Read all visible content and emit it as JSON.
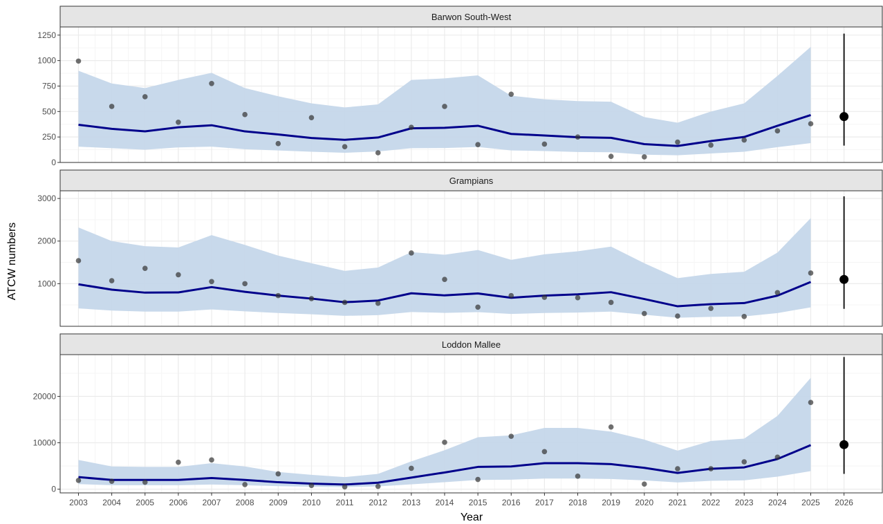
{
  "chart_data": {
    "type": "line",
    "xlabel": "Year",
    "ylabel": "ATCW numbers",
    "x": [
      2003,
      2004,
      2005,
      2006,
      2007,
      2008,
      2009,
      2010,
      2011,
      2012,
      2013,
      2014,
      2015,
      2016,
      2017,
      2018,
      2019,
      2020,
      2021,
      2022,
      2023,
      2024,
      2025
    ],
    "x_ticks": [
      "2003",
      "2004",
      "2005",
      "2006",
      "2007",
      "2008",
      "2009",
      "2010",
      "2011",
      "2012",
      "2013",
      "2014",
      "2015",
      "2016",
      "2017",
      "2018",
      "2019",
      "2020",
      "2021",
      "2022",
      "2023",
      "2024",
      "2025",
      "2026"
    ],
    "xlim": [
      2002.45,
      2027.15
    ],
    "grid": true,
    "colors": {
      "line": "#00008b",
      "ribbon": "#c5d7ea",
      "point": "#333333",
      "forecast": "#000000",
      "strip_bg": "#e5e5e5",
      "grid_major": "#ebebeb",
      "grid_minor": "#f5f5f5"
    },
    "panels": [
      {
        "title": "Barwon South-West",
        "ylim": [
          0,
          1330
        ],
        "yticks": [
          0,
          250,
          500,
          750,
          1000,
          1250
        ],
        "ytick_labels": [
          "0",
          "250",
          "500",
          "750",
          "1000",
          "1250"
        ],
        "fit": [
          370,
          330,
          305,
          345,
          365,
          305,
          275,
          240,
          222,
          245,
          335,
          340,
          360,
          280,
          265,
          248,
          242,
          180,
          162,
          210,
          250,
          360,
          465
        ],
        "lower": [
          155,
          140,
          125,
          148,
          155,
          130,
          118,
          105,
          95,
          108,
          140,
          142,
          152,
          118,
          112,
          103,
          100,
          76,
          70,
          88,
          105,
          150,
          190
        ],
        "upper": [
          900,
          775,
          730,
          810,
          880,
          730,
          650,
          580,
          540,
          570,
          810,
          825,
          855,
          655,
          620,
          602,
          596,
          445,
          390,
          500,
          580,
          850,
          1135
        ],
        "observed": [
          995,
          550,
          645,
          395,
          775,
          470,
          185,
          440,
          155,
          95,
          345,
          550,
          175,
          670,
          180,
          250,
          60,
          55,
          200,
          170,
          220,
          310,
          380
        ],
        "forecast": {
          "x": 2026,
          "y": 450,
          "lower": 165,
          "upper": 1265
        }
      },
      {
        "title": "Grampians",
        "ylim": [
          0,
          3180
        ],
        "yticks": [
          1000,
          2000,
          3000
        ],
        "ytick_labels": [
          "1000",
          "2000",
          "3000"
        ],
        "fit": [
          985,
          860,
          790,
          795,
          920,
          810,
          720,
          650,
          565,
          605,
          775,
          725,
          770,
          670,
          720,
          750,
          800,
          640,
          470,
          520,
          545,
          720,
          1040
        ],
        "lower": [
          420,
          370,
          345,
          345,
          395,
          350,
          312,
          282,
          245,
          262,
          335,
          315,
          332,
          290,
          312,
          322,
          345,
          272,
          200,
          222,
          232,
          310,
          445
        ],
        "upper": [
          2320,
          2000,
          1880,
          1850,
          2140,
          1910,
          1660,
          1480,
          1300,
          1380,
          1740,
          1680,
          1790,
          1560,
          1690,
          1760,
          1870,
          1480,
          1130,
          1230,
          1280,
          1730,
          2540
        ],
        "observed": [
          1540,
          1070,
          1360,
          1210,
          1050,
          1000,
          720,
          650,
          560,
          540,
          1720,
          1100,
          450,
          720,
          680,
          670,
          560,
          300,
          240,
          420,
          230,
          790,
          1250
        ],
        "forecast": {
          "x": 2026,
          "y": 1100,
          "lower": 410,
          "upper": 3050
        }
      },
      {
        "title": "Loddon Mallee",
        "ylim": [
          -800,
          29000
        ],
        "yticks": [
          0,
          10000,
          20000
        ],
        "ytick_labels": [
          "0",
          "10000",
          "20000"
        ],
        "fit": [
          2600,
          2000,
          2000,
          2000,
          2400,
          2000,
          1500,
          1200,
          1000,
          1400,
          2500,
          3600,
          4800,
          4900,
          5600,
          5600,
          5400,
          4600,
          3500,
          4400,
          4700,
          6500,
          9500
        ],
        "lower": [
          1100,
          850,
          850,
          850,
          1000,
          850,
          650,
          520,
          430,
          600,
          1050,
          1500,
          2000,
          2050,
          2300,
          2300,
          2200,
          1900,
          1450,
          1800,
          1900,
          2700,
          3900
        ],
        "upper": [
          6300,
          4900,
          4800,
          4800,
          5600,
          4900,
          3700,
          3100,
          2600,
          3300,
          6000,
          8400,
          11200,
          11600,
          13200,
          13200,
          12400,
          10700,
          8300,
          10400,
          10900,
          15800,
          24000
        ],
        "observed": [
          1900,
          1700,
          1500,
          5800,
          6300,
          1000,
          3300,
          800,
          500,
          600,
          4500,
          10100,
          2100,
          11400,
          8100,
          2800,
          13400,
          1100,
          4400,
          4400,
          5900,
          6900,
          18700
        ],
        "forecast": {
          "x": 2026,
          "y": 9600,
          "lower": 3300,
          "upper": 28500
        }
      }
    ]
  }
}
